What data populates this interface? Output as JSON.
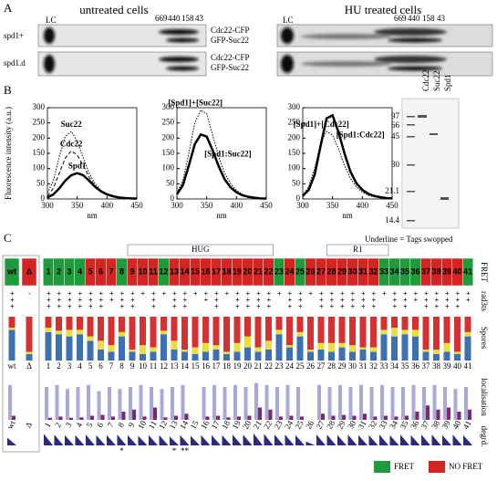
{
  "panel_a": {
    "label": "A",
    "left_title": "untreated cells",
    "right_title": "HU treated cells",
    "lc": "LC",
    "markers": [
      "669",
      "440",
      "158",
      "43"
    ],
    "rows": [
      "spd1+",
      "spd1.d"
    ],
    "bands": [
      "Cdc22-CFP",
      "GFP-Suc22"
    ]
  },
  "panel_b": {
    "label": "B",
    "gel_lanes": [
      "Cdc22",
      "Suc22",
      "Spd1"
    ],
    "gel_mw": [
      "97",
      "66",
      "45",
      "30",
      "21.1",
      "14.4"
    ]
  },
  "chart_data": [
    {
      "type": "line",
      "ylabel": "Fluorescence intensity (a.u.)",
      "xlabel": "nm",
      "x": [
        300,
        310,
        320,
        330,
        340,
        350,
        360,
        370,
        380,
        390,
        400,
        410,
        420,
        430,
        440,
        450
      ],
      "xlim": [
        300,
        450
      ],
      "ylim": [
        0,
        300
      ],
      "xticks": [
        300,
        350,
        400,
        450
      ],
      "yticks": [
        0,
        50,
        100,
        150,
        200,
        250,
        300
      ],
      "series": [
        {
          "name": "Suc22",
          "color": "#000000",
          "style": "dotted",
          "width": 1,
          "values": [
            20,
            60,
            140,
            205,
            222,
            190,
            135,
            85,
            50,
            28,
            15,
            8,
            5,
            3,
            2,
            1
          ]
        },
        {
          "name": "Cdc22",
          "color": "#000000",
          "style": "dashed",
          "width": 1,
          "values": [
            10,
            35,
            85,
            135,
            158,
            145,
            110,
            72,
            42,
            24,
            13,
            7,
            4,
            2,
            1,
            1
          ]
        },
        {
          "name": "Spd1",
          "color": "#000000",
          "style": "solid",
          "width": 2.5,
          "values": [
            5,
            15,
            35,
            60,
            78,
            85,
            78,
            60,
            40,
            25,
            15,
            9,
            5,
            3,
            2,
            1
          ]
        }
      ]
    },
    {
      "type": "line",
      "xlabel": "nm",
      "x": [
        300,
        310,
        320,
        330,
        340,
        350,
        360,
        370,
        380,
        390,
        400,
        410,
        420,
        430,
        440,
        450
      ],
      "xlim": [
        300,
        450
      ],
      "ylim": [
        0,
        300
      ],
      "xticks": [
        300,
        350,
        400,
        450
      ],
      "yticks": [
        0,
        50,
        100,
        150,
        200,
        250,
        300
      ],
      "series": [
        {
          "name": "[Spd1]+[Suc22]",
          "color": "#000000",
          "style": "dotted",
          "width": 1,
          "values": [
            20,
            60,
            150,
            250,
            292,
            280,
            210,
            140,
            85,
            50,
            28,
            15,
            8,
            5,
            3,
            2
          ]
        },
        {
          "name": "[Spd1:Suc22]",
          "color": "#000000",
          "style": "solid",
          "width": 2.5,
          "values": [
            15,
            45,
            110,
            180,
            212,
            205,
            160,
            108,
            65,
            38,
            22,
            12,
            7,
            4,
            2,
            1
          ]
        }
      ]
    },
    {
      "type": "line",
      "xlabel": "nm",
      "x": [
        300,
        310,
        320,
        330,
        340,
        350,
        360,
        370,
        380,
        390,
        400,
        410,
        420,
        430,
        440,
        450
      ],
      "xlim": [
        300,
        450
      ],
      "ylim": [
        0,
        300
      ],
      "xticks": [
        300,
        350,
        400,
        450
      ],
      "yticks": [
        0,
        50,
        100,
        150,
        200,
        250,
        300
      ],
      "series": [
        {
          "name": "[Spd1:Cdc22]",
          "color": "#000000",
          "style": "solid",
          "width": 2.5,
          "values": [
            10,
            30,
            80,
            175,
            265,
            275,
            220,
            150,
            90,
            52,
            30,
            17,
            10,
            6,
            3,
            2
          ]
        },
        {
          "name": "[Spd1]+[Cdc22]",
          "color": "#000000",
          "style": "dotted",
          "width": 1,
          "values": [
            12,
            40,
            100,
            185,
            222,
            210,
            165,
            110,
            68,
            40,
            22,
            12,
            7,
            4,
            2,
            1
          ]
        }
      ]
    }
  ],
  "panel_c": {
    "label": "C",
    "note": "Underline = Tags swopped",
    "hug": "HUG",
    "r1": "R1",
    "row_labels": [
      "FRET",
      "rad3ts",
      "Spores",
      "localisation",
      "degrd."
    ],
    "legend": {
      "fret": "FRET",
      "no_fret": "NO FRET"
    },
    "colors": {
      "fret": "#1f9a3c",
      "no_fret": "#d42424",
      "blue": "#3d6fb3",
      "yellow": "#e8df3c",
      "red": "#d63030",
      "loc_light": "#a9a9d9",
      "loc_dark": "#7d2a6c",
      "degrd": "#2b2b7a"
    },
    "labels": [
      "wt",
      "Δ",
      "1",
      "2",
      "3",
      "4",
      "5",
      "6",
      "7",
      "8",
      "9",
      "10",
      "11",
      "12",
      "13",
      "14",
      "15",
      "16",
      "17",
      "18",
      "19",
      "20",
      "21",
      "22",
      "23",
      "24",
      "25",
      "26",
      "27",
      "28",
      "29",
      "30",
      "31",
      "32",
      "33",
      "34",
      "35",
      "36",
      "37",
      "38",
      "39",
      "40",
      "41"
    ],
    "fret": [
      true,
      false,
      true,
      true,
      true,
      true,
      false,
      false,
      false,
      true,
      false,
      false,
      false,
      true,
      false,
      false,
      false,
      false,
      false,
      false,
      false,
      false,
      false,
      false,
      true,
      false,
      true,
      false,
      false,
      false,
      false,
      false,
      false,
      false,
      true,
      true,
      true,
      true,
      false,
      false,
      false,
      false,
      true
    ],
    "rad3": [
      "+++",
      "-",
      "+++",
      "+++",
      "+++",
      "+++",
      "+++",
      "+++",
      "++",
      "+++",
      "+++",
      "+",
      "+++",
      "+",
      "+++",
      "+++",
      "+",
      "++",
      "+++",
      "+",
      "+++",
      "+++",
      "+++",
      "+++",
      "+",
      "+++",
      "+++",
      "+",
      "+++",
      "+++",
      "+++",
      "+++",
      "+++",
      "+++",
      "+",
      "+++",
      "+++",
      "++",
      "+++",
      "+++",
      "+++",
      "+++",
      "++"
    ],
    "spores_blue": [
      70,
      15,
      65,
      60,
      55,
      60,
      45,
      25,
      20,
      55,
      20,
      15,
      20,
      60,
      25,
      20,
      15,
      20,
      25,
      15,
      20,
      30,
      20,
      25,
      60,
      30,
      55,
      20,
      25,
      20,
      30,
      20,
      25,
      20,
      60,
      55,
      60,
      55,
      20,
      15,
      20,
      15,
      55
    ],
    "spores_yellow": [
      5,
      5,
      10,
      8,
      15,
      10,
      10,
      20,
      15,
      10,
      5,
      20,
      10,
      8,
      20,
      5,
      15,
      20,
      10,
      5,
      20,
      25,
      10,
      20,
      10,
      5,
      10,
      5,
      15,
      20,
      10,
      15,
      5,
      10,
      10,
      20,
      10,
      15,
      5,
      10,
      20,
      5,
      10
    ],
    "spores_red": [
      25,
      80,
      25,
      32,
      30,
      30,
      45,
      55,
      65,
      35,
      75,
      65,
      70,
      32,
      55,
      75,
      70,
      60,
      65,
      80,
      60,
      45,
      70,
      55,
      30,
      65,
      35,
      75,
      60,
      60,
      60,
      65,
      70,
      70,
      30,
      25,
      30,
      30,
      75,
      75,
      60,
      80,
      35
    ],
    "loc_light": [
      85,
      0,
      80,
      85,
      75,
      80,
      85,
      70,
      80,
      75,
      80,
      85,
      80,
      75,
      80,
      85,
      0,
      80,
      85,
      80,
      85,
      80,
      90,
      85,
      80,
      85,
      80,
      0,
      85,
      80,
      85,
      80,
      85,
      80,
      85,
      80,
      80,
      85,
      80,
      85,
      80,
      75,
      80
    ],
    "loc_dark": [
      10,
      0,
      5,
      8,
      5,
      6,
      10,
      12,
      8,
      20,
      25,
      8,
      30,
      6,
      10,
      15,
      0,
      8,
      10,
      6,
      8,
      10,
      30,
      25,
      8,
      10,
      8,
      0,
      15,
      10,
      12,
      10,
      15,
      8,
      10,
      8,
      10,
      20,
      35,
      25,
      30,
      20,
      25
    ],
    "degrd": [
      60,
      0,
      90,
      85,
      80,
      80,
      85,
      80,
      80,
      85,
      80,
      75,
      80,
      80,
      70,
      80,
      75,
      80,
      80,
      80,
      85,
      85,
      95,
      90,
      85,
      85,
      80,
      30,
      85,
      85,
      80,
      85,
      80,
      80,
      85,
      80,
      85,
      80,
      85,
      85,
      80,
      85,
      80
    ],
    "asterisks": [
      null,
      null,
      null,
      null,
      null,
      null,
      null,
      null,
      null,
      "*",
      null,
      null,
      null,
      null,
      "*",
      "**",
      null,
      null,
      null,
      null,
      null,
      null,
      null,
      null,
      null,
      null,
      null,
      null,
      null,
      null,
      null,
      null,
      null,
      null,
      null,
      null,
      null,
      null,
      null,
      null,
      null,
      null,
      null
    ]
  }
}
